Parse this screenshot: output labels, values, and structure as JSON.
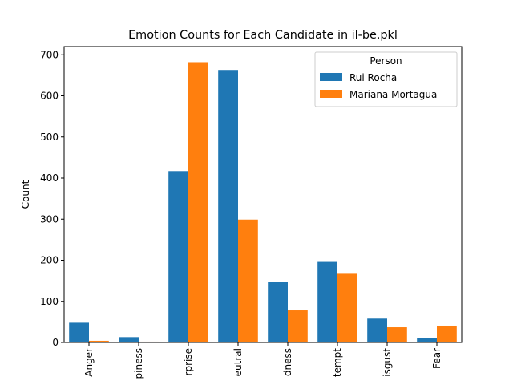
{
  "chart_data": {
    "type": "bar",
    "title": "Emotion Counts for Each Candidate in il-be.pkl",
    "xlabel": "",
    "ylabel": "Count",
    "ylim": [
      0,
      720
    ],
    "yticks": [
      0,
      100,
      200,
      300,
      400,
      500,
      600,
      700
    ],
    "categories": [
      "Anger",
      "Happiness",
      "Surprise",
      "Neutral",
      "Sadness",
      "Contempt",
      "Disgust",
      "Fear"
    ],
    "category_labels_visible": [
      "Anger",
      "piness",
      "rprise",
      "eutral",
      "dness",
      "tempt",
      "isgust",
      "Fear"
    ],
    "legend_title": "Person",
    "legend_position": "top-right",
    "series": [
      {
        "name": "Rui Rocha",
        "color": "#1f77b4",
        "values": [
          48,
          13,
          417,
          663,
          147,
          196,
          58,
          11
        ]
      },
      {
        "name": "Mariana Mortagua",
        "color": "#ff7f0e",
        "values": [
          4,
          2,
          682,
          299,
          78,
          169,
          37,
          41
        ]
      }
    ]
  }
}
